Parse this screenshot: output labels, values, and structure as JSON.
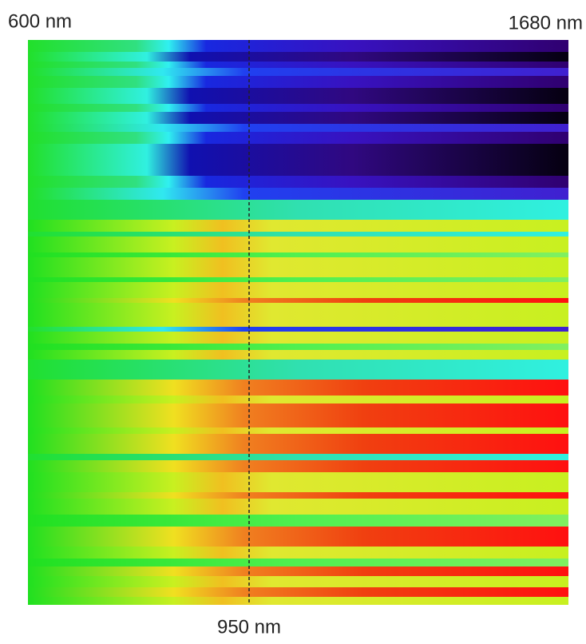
{
  "labels": {
    "left": "600 nm",
    "right": "1680 nm",
    "marker": "950 nm"
  }
}
